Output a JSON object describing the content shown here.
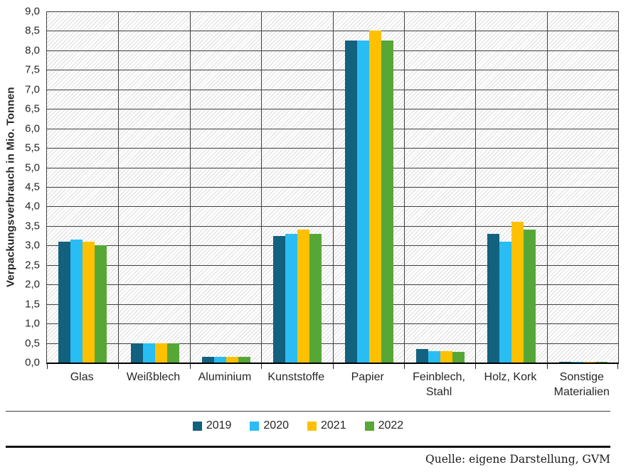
{
  "chart_data": {
    "type": "bar",
    "title": "",
    "xlabel": "",
    "ylabel": "Verpackungsverbrauch in Mio. Tonnen",
    "ylim": [
      0,
      9
    ],
    "y_tick_step": 0.5,
    "y_tick_labels": [
      "9,0",
      "8,5",
      "8,0",
      "7,5",
      "7,0",
      "6,5",
      "6,0",
      "5,5",
      "5,0",
      "4,5",
      "4,0",
      "3,5",
      "3,0",
      "2,5",
      "2,0",
      "1,5",
      "1,0",
      "0,5",
      "0,0"
    ],
    "grid": true,
    "background_pattern": "diagonal-hatch",
    "legend_position": "bottom",
    "categories": [
      "Glas",
      "Weißblech",
      "Aluminium",
      "Kunststoffe",
      "Papier",
      "Feinblech,\nStahl",
      "Holz, Kork",
      "Sonstige\nMaterialien"
    ],
    "series": [
      {
        "name": "2019",
        "color": "#12617F",
        "values": [
          3.1,
          0.5,
          0.15,
          3.25,
          8.25,
          0.35,
          3.3,
          0.02
        ]
      },
      {
        "name": "2020",
        "color": "#29BDF4",
        "values": [
          3.15,
          0.5,
          0.15,
          3.3,
          8.25,
          0.3,
          3.1,
          0.02
        ]
      },
      {
        "name": "2021",
        "color": "#FDC101",
        "values": [
          3.1,
          0.5,
          0.15,
          3.4,
          8.5,
          0.3,
          3.6,
          0.02
        ]
      },
      {
        "name": "2022",
        "color": "#57A737",
        "values": [
          3.0,
          0.5,
          0.15,
          3.3,
          8.25,
          0.28,
          3.4,
          0.02
        ]
      }
    ]
  },
  "source_note": "Quelle: eigene Darstellung, GVM"
}
